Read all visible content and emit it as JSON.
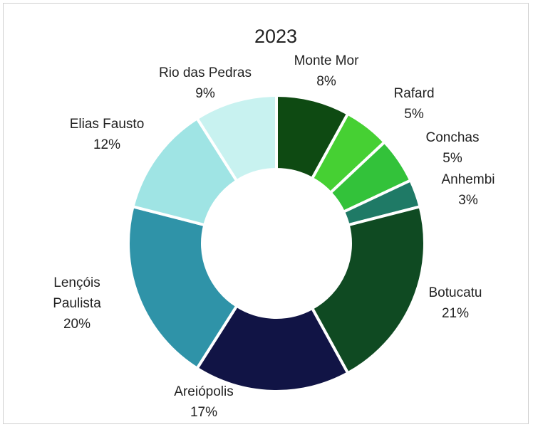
{
  "chart_data": {
    "type": "pie",
    "title": "2023",
    "donut": true,
    "slices": [
      {
        "name": "Monte Mor",
        "value": 8,
        "label": "8%",
        "color": "#0e4a12"
      },
      {
        "name": "Rafard",
        "value": 5,
        "label": "5%",
        "color": "#46d033"
      },
      {
        "name": "Conchas",
        "value": 5,
        "label": "5%",
        "color": "#33c23a"
      },
      {
        "name": "Anhembi",
        "value": 3,
        "label": "3%",
        "color": "#1f7a66"
      },
      {
        "name": "Botucatu",
        "value": 21,
        "label": "21%",
        "color": "#0f4a22"
      },
      {
        "name": "Areiópolis",
        "value": 17,
        "label": "17%",
        "color": "#111445"
      },
      {
        "name": "Lençóis Paulista",
        "value": 20,
        "label": "20%",
        "color": "#2f93a8"
      },
      {
        "name": "Elias Fausto",
        "value": 12,
        "label": "12%",
        "color": "#9fe4e4"
      },
      {
        "name": "Rio das Pedras",
        "value": 9,
        "label": "9%",
        "color": "#c8f2f0"
      }
    ],
    "legend": "none",
    "data_labels": "outside"
  }
}
